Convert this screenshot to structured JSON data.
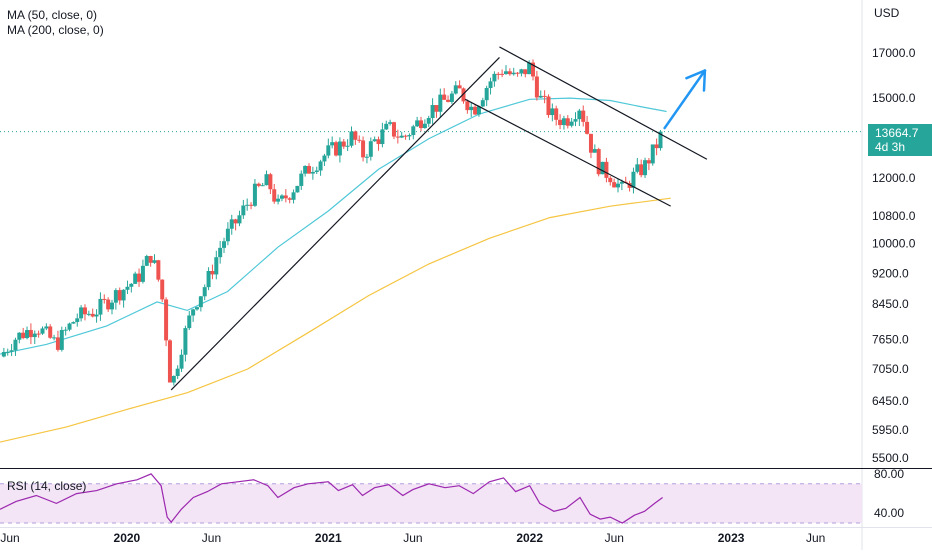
{
  "chart_data": {
    "type": "candlestick",
    "currency_label": "USD",
    "indicators": [
      {
        "key": "ma50",
        "label": "MA (50, close, 0)",
        "color": "#4fc8d8"
      },
      {
        "key": "ma200",
        "label": "MA (200, close, 0)",
        "color": "#f5c542"
      }
    ],
    "price_axis": {
      "scale": "log",
      "range": [
        5350,
        19500
      ],
      "ticks": [
        "17000.0",
        "15000.0",
        "13664.7",
        "12000.0",
        "10800.0",
        "10000.0",
        "9200.0",
        "8450.0",
        "7650.0",
        "7050.0",
        "6450.0",
        "5950.0",
        "5500.0"
      ]
    },
    "time_axis": {
      "labels": [
        "Jun",
        "2020",
        "Jun",
        "2021",
        "Jun",
        "2022",
        "Jun",
        "2023",
        "Jun"
      ],
      "label_dates": [
        2019.42,
        2020.0,
        2020.42,
        2021.0,
        2021.42,
        2022.0,
        2022.42,
        2023.0,
        2023.42
      ],
      "range": [
        2019.37,
        2023.65
      ]
    },
    "last_price": {
      "value": "13664.7",
      "countdown": "4d 3h",
      "color": "#26a69a"
    },
    "candle_colors": {
      "up": "#26a69a",
      "down": "#ef5350"
    },
    "close_path": [
      [
        2019.37,
        7300
      ],
      [
        2019.45,
        7700
      ],
      [
        2019.55,
        7950
      ],
      [
        2019.65,
        7550
      ],
      [
        2019.75,
        8150
      ],
      [
        2019.85,
        8300
      ],
      [
        2019.95,
        8700
      ],
      [
        2020.05,
        9050
      ],
      [
        2020.12,
        9700
      ],
      [
        2020.17,
        8800
      ],
      [
        2020.22,
        6650
      ],
      [
        2020.27,
        7500
      ],
      [
        2020.33,
        8400
      ],
      [
        2020.4,
        9000
      ],
      [
        2020.47,
        10000
      ],
      [
        2020.55,
        10700
      ],
      [
        2020.63,
        11500
      ],
      [
        2020.7,
        11900
      ],
      [
        2020.75,
        11100
      ],
      [
        2020.83,
        11700
      ],
      [
        2020.9,
        12300
      ],
      [
        2021.0,
        12900
      ],
      [
        2021.05,
        13100
      ],
      [
        2021.12,
        13500
      ],
      [
        2021.17,
        12800
      ],
      [
        2021.23,
        13300
      ],
      [
        2021.3,
        13800
      ],
      [
        2021.37,
        13400
      ],
      [
        2021.42,
        13800
      ],
      [
        2021.5,
        14500
      ],
      [
        2021.58,
        14900
      ],
      [
        2021.65,
        15300
      ],
      [
        2021.72,
        14500
      ],
      [
        2021.8,
        15700
      ],
      [
        2021.87,
        16300
      ],
      [
        2021.93,
        15800
      ],
      [
        2022.0,
        16400
      ],
      [
        2022.05,
        15000
      ],
      [
        2022.12,
        14200
      ],
      [
        2022.18,
        14100
      ],
      [
        2022.25,
        14700
      ],
      [
        2022.3,
        13200
      ],
      [
        2022.35,
        12300
      ],
      [
        2022.4,
        12100
      ],
      [
        2022.46,
        11600
      ],
      [
        2022.52,
        12100
      ],
      [
        2022.57,
        12400
      ],
      [
        2022.62,
        13000
      ],
      [
        2022.66,
        13664.7
      ]
    ],
    "ma50": [
      [
        2019.37,
        7350
      ],
      [
        2019.6,
        7550
      ],
      [
        2019.9,
        7950
      ],
      [
        2020.15,
        8500
      ],
      [
        2020.3,
        8300
      ],
      [
        2020.5,
        8750
      ],
      [
        2020.75,
        9900
      ],
      [
        2021.0,
        10950
      ],
      [
        2021.25,
        12300
      ],
      [
        2021.5,
        13400
      ],
      [
        2021.75,
        14350
      ],
      [
        2022.0,
        14950
      ],
      [
        2022.2,
        15000
      ],
      [
        2022.4,
        14900
      ],
      [
        2022.55,
        14650
      ],
      [
        2022.68,
        14450
      ]
    ],
    "ma200": [
      [
        2019.37,
        5750
      ],
      [
        2019.7,
        6000
      ],
      [
        2020.0,
        6300
      ],
      [
        2020.3,
        6600
      ],
      [
        2020.6,
        7050
      ],
      [
        2020.9,
        7800
      ],
      [
        2021.2,
        8650
      ],
      [
        2021.5,
        9450
      ],
      [
        2021.8,
        10150
      ],
      [
        2022.1,
        10750
      ],
      [
        2022.4,
        11100
      ],
      [
        2022.7,
        11350
      ]
    ],
    "trendlines": [
      {
        "from": [
          2020.22,
          6650
        ],
        "to": [
          2021.85,
          16800
        ],
        "color": "#131722"
      },
      {
        "from": [
          2021.85,
          17300
        ],
        "to": [
          2022.88,
          12650
        ],
        "color": "#131722"
      },
      {
        "from": [
          2021.68,
          14950
        ],
        "to": [
          2022.7,
          11100
        ],
        "color": "#131722"
      }
    ],
    "arrow": {
      "from": [
        2022.67,
        13800
      ],
      "to": [
        2022.87,
        16200
      ],
      "color": "#2196f3"
    },
    "rsi": {
      "label": "RSI (14, close)",
      "ticks": [
        "80.00",
        "40.00"
      ],
      "range": [
        28,
        84
      ],
      "bands": [
        70,
        30
      ],
      "color": "#9c27b0",
      "band_fill": "#f3e5f5",
      "values": [
        [
          2019.37,
          44
        ],
        [
          2019.45,
          52
        ],
        [
          2019.55,
          58
        ],
        [
          2019.65,
          50
        ],
        [
          2019.75,
          60
        ],
        [
          2019.85,
          63
        ],
        [
          2019.95,
          70
        ],
        [
          2020.05,
          74
        ],
        [
          2020.12,
          80
        ],
        [
          2020.17,
          68
        ],
        [
          2020.2,
          36
        ],
        [
          2020.22,
          31
        ],
        [
          2020.27,
          44
        ],
        [
          2020.33,
          56
        ],
        [
          2020.4,
          62
        ],
        [
          2020.47,
          70
        ],
        [
          2020.55,
          72
        ],
        [
          2020.63,
          74
        ],
        [
          2020.7,
          68
        ],
        [
          2020.75,
          56
        ],
        [
          2020.83,
          66
        ],
        [
          2020.9,
          70
        ],
        [
          2021.0,
          72
        ],
        [
          2021.05,
          63
        ],
        [
          2021.12,
          69
        ],
        [
          2021.17,
          58
        ],
        [
          2021.23,
          66
        ],
        [
          2021.3,
          69
        ],
        [
          2021.37,
          58
        ],
        [
          2021.42,
          64
        ],
        [
          2021.5,
          70
        ],
        [
          2021.58,
          66
        ],
        [
          2021.65,
          68
        ],
        [
          2021.72,
          60
        ],
        [
          2021.8,
          72
        ],
        [
          2021.87,
          76
        ],
        [
          2021.93,
          62
        ],
        [
          2022.0,
          68
        ],
        [
          2022.05,
          50
        ],
        [
          2022.12,
          42
        ],
        [
          2022.18,
          45
        ],
        [
          2022.25,
          56
        ],
        [
          2022.3,
          39
        ],
        [
          2022.35,
          34
        ],
        [
          2022.4,
          36
        ],
        [
          2022.46,
          30
        ],
        [
          2022.52,
          38
        ],
        [
          2022.57,
          42
        ],
        [
          2022.62,
          50
        ],
        [
          2022.66,
          56
        ]
      ]
    }
  }
}
